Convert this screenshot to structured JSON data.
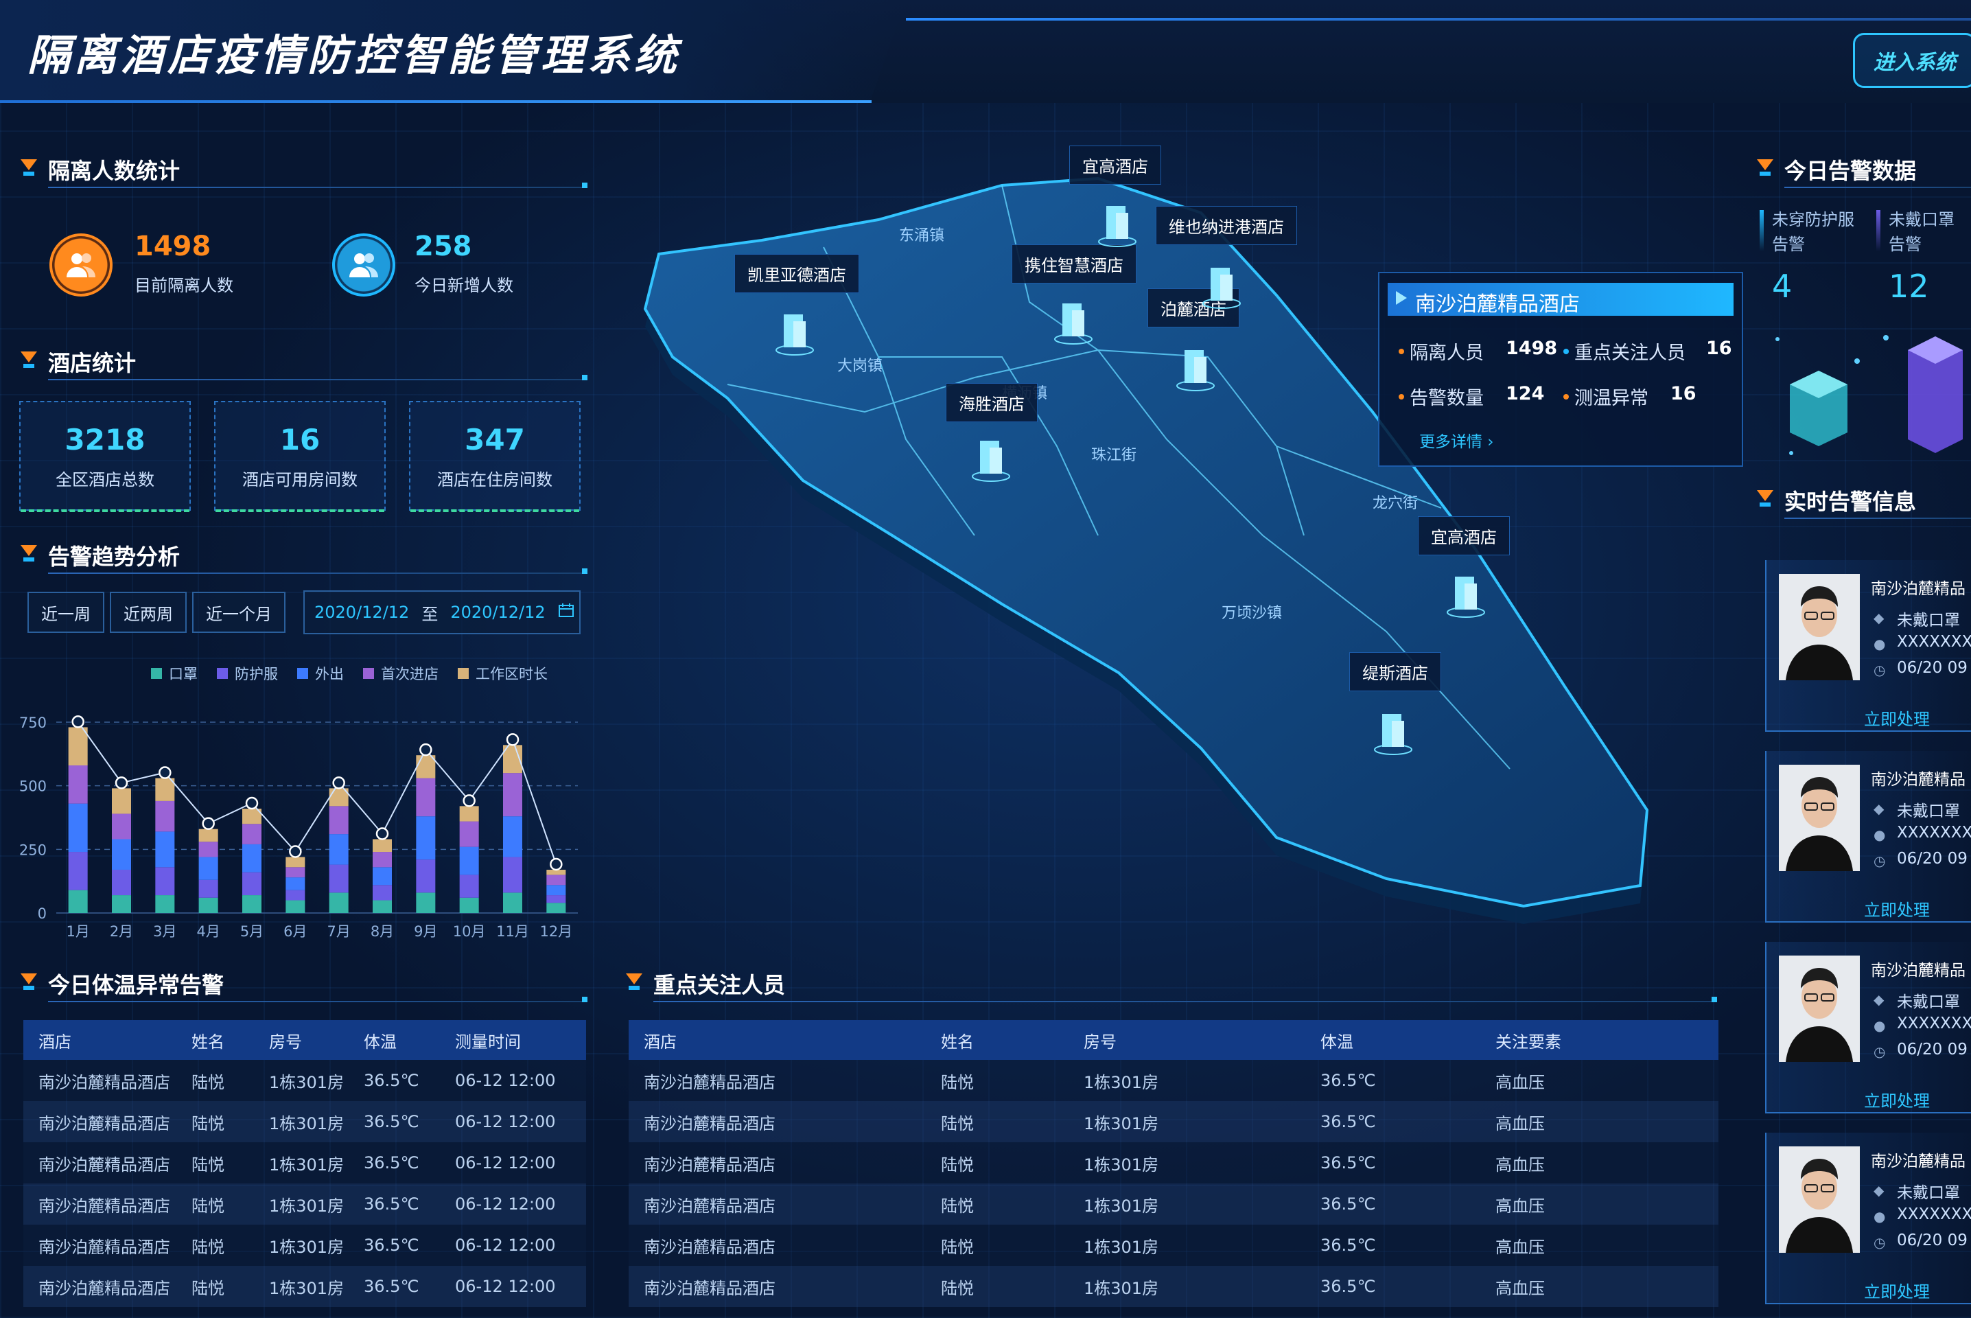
{
  "header": {
    "title": "隔离酒店疫情防控智能管理系统",
    "enter_button": "进入系统"
  },
  "left": {
    "isolation": {
      "title": "隔离人数统计",
      "current_value": "1498",
      "current_label": "目前隔离人数",
      "new_value": "258",
      "new_label": "今日新增人数"
    },
    "hotels": {
      "title": "酒店统计",
      "items": [
        {
          "value": "3218",
          "label": "全区酒店总数"
        },
        {
          "value": "16",
          "label": "酒店可用房间数"
        },
        {
          "value": "347",
          "label": "酒店在住房间数"
        }
      ]
    },
    "trend": {
      "title": "告警趋势分析",
      "ranges": [
        "近一周",
        "近两周",
        "近一个月"
      ],
      "date_from": "2020/12/12",
      "date_sep": "至",
      "date_to": "2020/12/12"
    }
  },
  "chart_data": {
    "type": "bar",
    "stacked": true,
    "categories": [
      "1月",
      "2月",
      "3月",
      "4月",
      "5月",
      "6月",
      "7月",
      "8月",
      "9月",
      "10月",
      "11月",
      "12月"
    ],
    "series": [
      {
        "name": "口罩",
        "color": "#35b6a7",
        "values": [
          90,
          70,
          70,
          60,
          70,
          50,
          80,
          50,
          80,
          60,
          80,
          40
        ]
      },
      {
        "name": "防护服",
        "color": "#6c5ce7",
        "values": [
          150,
          100,
          110,
          70,
          90,
          40,
          110,
          60,
          130,
          90,
          140,
          30
        ]
      },
      {
        "name": "外出",
        "color": "#3d7bff",
        "values": [
          190,
          120,
          140,
          90,
          110,
          50,
          120,
          70,
          170,
          110,
          160,
          40
        ]
      },
      {
        "name": "首次进店",
        "color": "#9a63d6",
        "values": [
          150,
          100,
          120,
          60,
          80,
          40,
          110,
          60,
          150,
          100,
          170,
          40
        ]
      },
      {
        "name": "工作区时长",
        "color": "#d8b37a",
        "values": [
          150,
          100,
          90,
          50,
          60,
          40,
          70,
          50,
          90,
          60,
          110,
          20
        ]
      }
    ],
    "ylim": [
      0,
      750
    ],
    "yticks": [
      0,
      250,
      500,
      750
    ],
    "grid": true,
    "legend": "top"
  },
  "temp_alerts": {
    "title": "今日体温异常告警",
    "headers": [
      "酒店",
      "姓名",
      "房号",
      "体温",
      "测量时间"
    ],
    "rows": [
      [
        "南沙泊麓精品酒店",
        "陆悦",
        "1栋301房",
        "36.5℃",
        "06-12 12:00"
      ],
      [
        "南沙泊麓精品酒店",
        "陆悦",
        "1栋301房",
        "36.5℃",
        "06-12 12:00"
      ],
      [
        "南沙泊麓精品酒店",
        "陆悦",
        "1栋301房",
        "36.5℃",
        "06-12 12:00"
      ],
      [
        "南沙泊麓精品酒店",
        "陆悦",
        "1栋301房",
        "36.5℃",
        "06-12 12:00"
      ],
      [
        "南沙泊麓精品酒店",
        "陆悦",
        "1栋301房",
        "36.5℃",
        "06-12 12:00"
      ],
      [
        "南沙泊麓精品酒店",
        "陆悦",
        "1栋301房",
        "36.5℃",
        "06-12 12:00"
      ]
    ]
  },
  "key_persons": {
    "title": "重点关注人员",
    "headers": [
      "酒店",
      "姓名",
      "房号",
      "体温",
      "关注要素"
    ],
    "rows": [
      [
        "南沙泊麓精品酒店",
        "陆悦",
        "1栋301房",
        "36.5℃",
        "高血压"
      ],
      [
        "南沙泊麓精品酒店",
        "陆悦",
        "1栋301房",
        "36.5℃",
        "高血压"
      ],
      [
        "南沙泊麓精品酒店",
        "陆悦",
        "1栋301房",
        "36.5℃",
        "高血压"
      ],
      [
        "南沙泊麓精品酒店",
        "陆悦",
        "1栋301房",
        "36.5℃",
        "高血压"
      ],
      [
        "南沙泊麓精品酒店",
        "陆悦",
        "1栋301房",
        "36.5℃",
        "高血压"
      ],
      [
        "南沙泊麓精品酒店",
        "陆悦",
        "1栋301房",
        "36.5℃",
        "高血压"
      ]
    ]
  },
  "map": {
    "pins": [
      {
        "name": "宜高酒店"
      },
      {
        "name": "维也纳进港酒店"
      },
      {
        "name": "凯里亚德酒店"
      },
      {
        "name": "携住智慧酒店"
      },
      {
        "name": "泊麓酒店"
      },
      {
        "name": "海胜酒店"
      },
      {
        "name": "宜高酒店"
      },
      {
        "name": "缇斯酒店"
      }
    ],
    "districts": [
      "东涌镇",
      "大岗镇",
      "横沥镇",
      "珠江街",
      "龙穴街",
      "万顷沙镇"
    ],
    "popup": {
      "hotel": "南沙泊麓精品酒店",
      "isolated_label": "隔离人员",
      "isolated_value": "1498",
      "focus_label": "重点关注人员",
      "focus_value": "16",
      "alarm_label": "告警数量",
      "alarm_value": "124",
      "temp_label": "测温异常",
      "temp_value": "16",
      "more": "更多详情 ›"
    }
  },
  "right": {
    "today": {
      "title": "今日告警数据",
      "a_label_1": "未穿防护服",
      "a_label_2": "告警",
      "a_value": "4",
      "b_label_1": "未戴口罩",
      "b_label_2": "告警",
      "b_value": "12"
    },
    "realtime": {
      "title": "实时告警信息",
      "cards": [
        {
          "hotel": "南沙泊麓精品",
          "type": "未戴口罩",
          "id": "XXXXXXX",
          "time": "06/20 09",
          "action": "立即处理"
        },
        {
          "hotel": "南沙泊麓精品",
          "type": "未戴口罩",
          "id": "XXXXXXX",
          "time": "06/20 09",
          "action": "立即处理"
        },
        {
          "hotel": "南沙泊麓精品",
          "type": "未戴口罩",
          "id": "XXXXXXX",
          "time": "06/20 09",
          "action": "立即处理"
        },
        {
          "hotel": "南沙泊麓精品",
          "type": "未戴口罩",
          "id": "XXXXXXX",
          "time": "06/20 09",
          "action": "立即处理"
        }
      ]
    }
  }
}
